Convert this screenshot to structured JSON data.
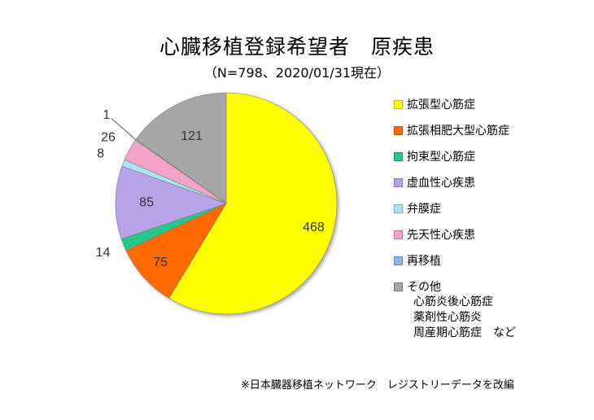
{
  "title": "心臓移植登録希望者　原疾患",
  "subtitle": "（N=798、2020/01/31現在）",
  "chart_data": {
    "type": "pie",
    "categories": [
      "拡張型心筋症",
      "拡張相肥大型心筋症",
      "拘束型心筋症",
      "虚血性心疾患",
      "弁膜症",
      "先天性心疾患",
      "再移植",
      "その他"
    ],
    "values": [
      468,
      75,
      14,
      85,
      8,
      26,
      1,
      121
    ],
    "colors": [
      "#ffff00",
      "#ff6a00",
      "#22c98a",
      "#b7a3e8",
      "#a9e4f2",
      "#f5a3c8",
      "#8ab4e8",
      "#a6a6a6"
    ],
    "value_labels": [
      "468",
      "75",
      "14",
      "85",
      "8",
      "26",
      "1",
      "121"
    ]
  },
  "legend": {
    "other_notes": [
      "心筋炎後心筋症",
      "薬剤性心筋炎",
      "周産期心筋症　など"
    ]
  },
  "source": "※日本臓器移植ネットワーク　レジストリーデータを改編"
}
